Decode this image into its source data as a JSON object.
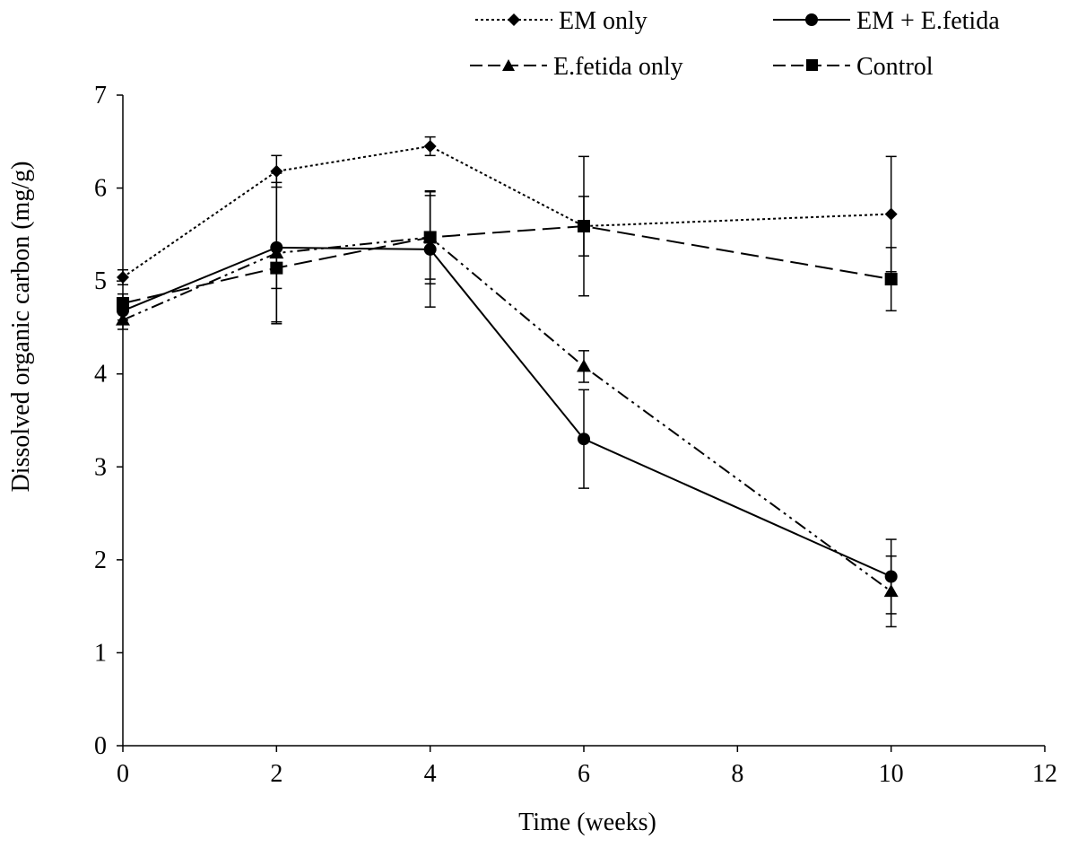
{
  "chart_data": {
    "type": "line",
    "title": "",
    "xlabel": "Time (weeks)",
    "ylabel": "Dissolved organic carbon (mg/g)",
    "xlim": [
      0,
      12
    ],
    "ylim": [
      0,
      7
    ],
    "x_ticks": [
      0,
      2,
      4,
      6,
      8,
      10,
      12
    ],
    "y_ticks": [
      0,
      1,
      2,
      3,
      4,
      5,
      6,
      7
    ],
    "grid": false,
    "legend_position": "top",
    "x": [
      0,
      2,
      4,
      6,
      10
    ],
    "series": [
      {
        "name": "EM only",
        "marker": "diamond",
        "line_style": "dotted",
        "values": [
          5.04,
          6.18,
          6.45,
          5.59,
          5.72
        ],
        "error": [
          0.08,
          0.17,
          0.1,
          0.75,
          0.62
        ]
      },
      {
        "name": "EM + E.fetida",
        "marker": "circle",
        "line_style": "solid",
        "values": [
          4.68,
          5.36,
          5.34,
          3.3,
          1.82
        ],
        "error": [
          0.1,
          0.8,
          0.62,
          0.53,
          0.4
        ]
      },
      {
        "name": "E.fetida only",
        "marker": "triangle",
        "line_style": "dash-dot-dot",
        "values": [
          4.58,
          5.3,
          5.47,
          4.08,
          1.66
        ],
        "error": [
          0.1,
          0.76,
          0.45,
          0.17,
          0.38
        ]
      },
      {
        "name": "Control",
        "marker": "square",
        "line_style": "long-dash",
        "values": [
          4.76,
          5.14,
          5.47,
          5.59,
          5.02
        ],
        "error": [
          0.1,
          0.22,
          0.5,
          0.32,
          0.34
        ]
      }
    ],
    "colors": {
      "line": "#000000",
      "axis": "#000000",
      "background": "#ffffff"
    }
  }
}
